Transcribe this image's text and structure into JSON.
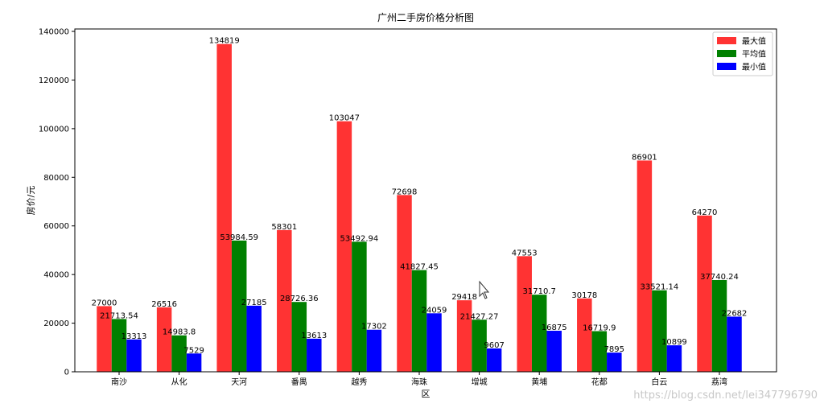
{
  "watermark": "https://blog.csdn.net/lei347796790",
  "chart_data": {
    "type": "bar",
    "title": "广州二手房价格分析图",
    "xlabel": "区",
    "ylabel": "房价/元",
    "ylim": [
      0,
      141000
    ],
    "yticks": [
      0,
      20000,
      40000,
      60000,
      80000,
      100000,
      120000,
      140000
    ],
    "grid": false,
    "legend_position": "top-right",
    "categories": [
      "南沙",
      "从化",
      "天河",
      "番禺",
      "越秀",
      "海珠",
      "增城",
      "黄埔",
      "花都",
      "白云",
      "荔湾"
    ],
    "series": [
      {
        "name": "最大值",
        "color": "#ff3333",
        "values": [
          27000,
          26516,
          134819,
          58301,
          103047,
          72698,
          29418,
          47553,
          30178,
          86901,
          64270
        ],
        "labels": [
          "27000",
          "26516",
          "134819",
          "58301",
          "103047",
          "72698",
          "29418",
          "47553",
          "30178",
          "86901",
          "64270"
        ]
      },
      {
        "name": "平均值",
        "color": "#008000",
        "values": [
          21713.54,
          14983.8,
          53984.59,
          28726.36,
          53492.94,
          41827.45,
          21427.27,
          31710.7,
          16719.9,
          33521.14,
          37740.24
        ],
        "labels": [
          "21713.54",
          "14983.8",
          "53984.59",
          "28726.36",
          "53492.94",
          "41827.45",
          "21427.27",
          "31710.7",
          "16719.9",
          "33521.14",
          "37740.24"
        ]
      },
      {
        "name": "最小值",
        "color": "#0000ff",
        "values": [
          13313,
          7529,
          27185,
          13613,
          17302,
          24059,
          9607,
          16875,
          7895,
          10899,
          22682
        ],
        "labels": [
          "13313",
          "7529",
          "27185",
          "13613",
          "17302",
          "24059",
          "9607",
          "16875",
          "7895",
          "10899",
          "22682"
        ]
      }
    ]
  }
}
